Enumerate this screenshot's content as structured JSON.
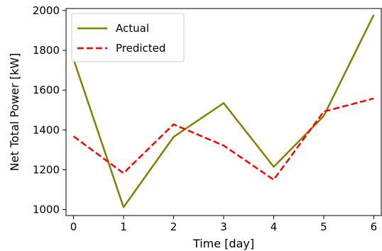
{
  "chart_data": {
    "type": "line",
    "xlabel": "Time [day]",
    "ylabel": "Net Total Power [kW]",
    "x": [
      0,
      1,
      2,
      3,
      4,
      5,
      6
    ],
    "xlim": [
      -0.15,
      6.15
    ],
    "ylim": [
      970,
      2010
    ],
    "xticks": [
      0,
      1,
      2,
      3,
      4,
      5,
      6
    ],
    "yticks": [
      1000,
      1200,
      1400,
      1600,
      1800,
      2000
    ],
    "grid": false,
    "legend_position": "top-left",
    "series": [
      {
        "name": "Actual",
        "values": [
          1755,
          1012,
          1365,
          1535,
          1215,
          1470,
          1978
        ],
        "color": "#808000",
        "style": "solid"
      },
      {
        "name": "Predicted",
        "values": [
          1368,
          1183,
          1428,
          1322,
          1150,
          1492,
          1558
        ],
        "color": "#ff0000",
        "style": "dashed"
      }
    ]
  }
}
